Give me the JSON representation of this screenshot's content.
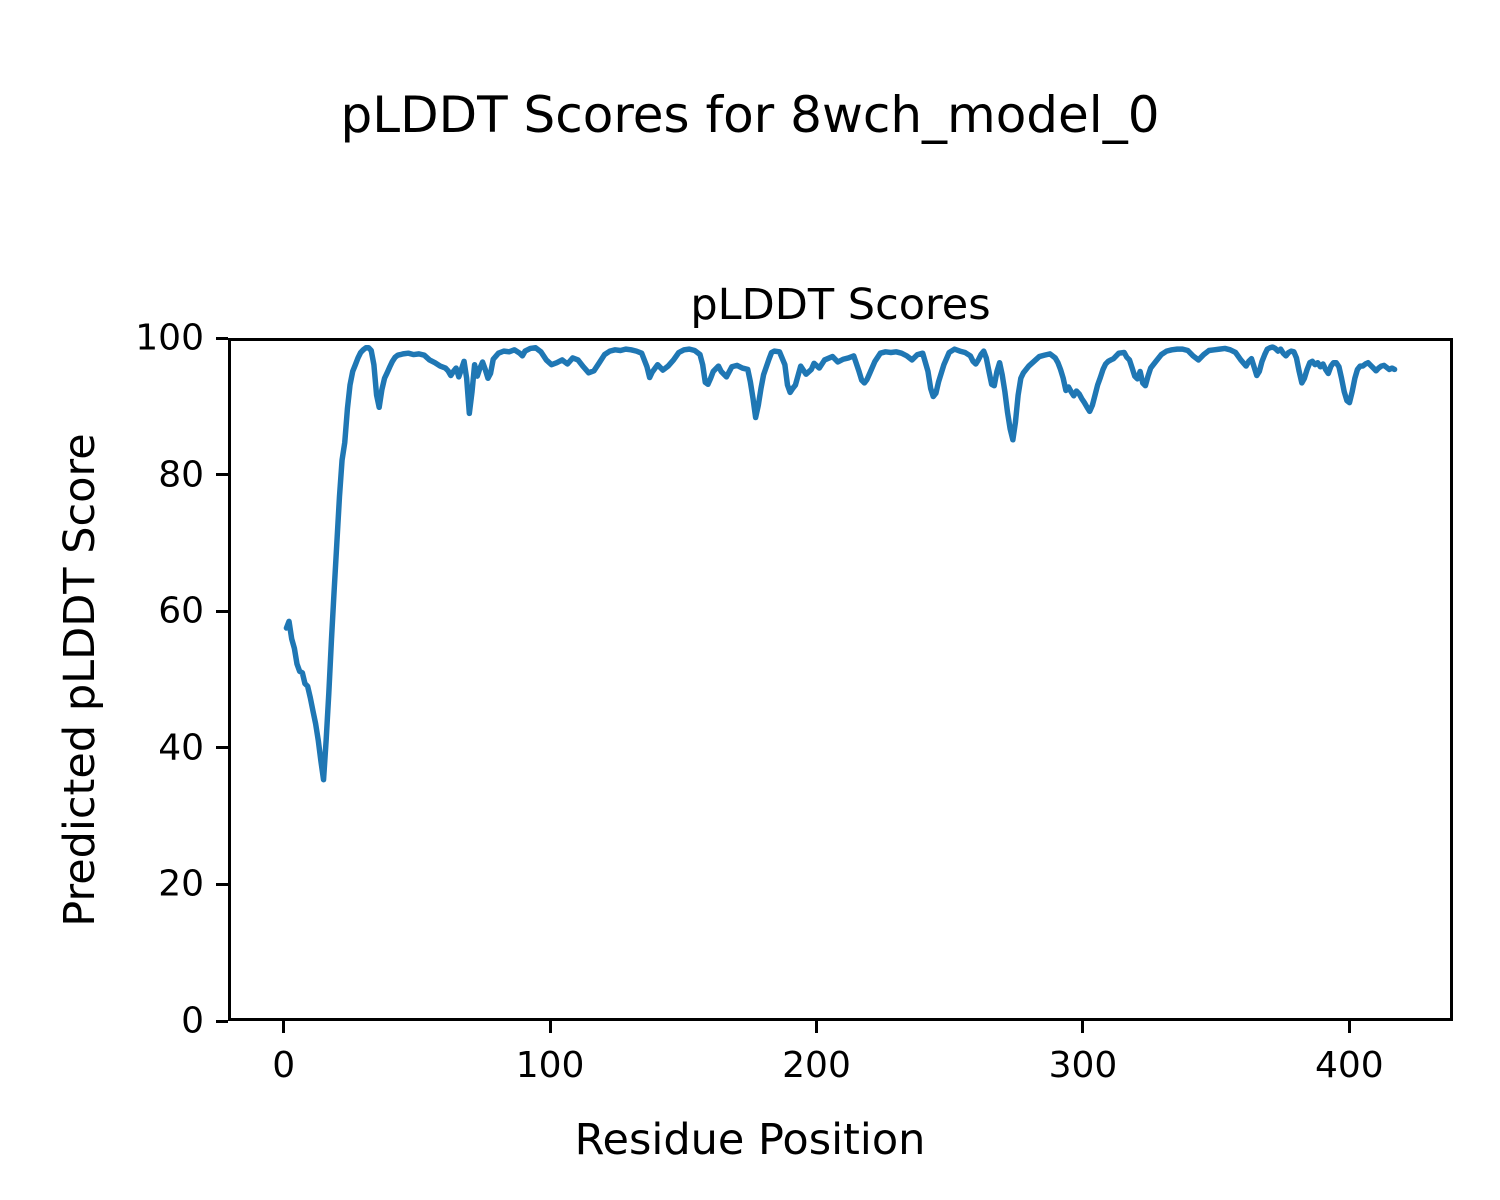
{
  "figure": {
    "suptitle": "pLDDT Scores for 8wch_model_0",
    "background_color": "#ffffff"
  },
  "chart_data": {
    "type": "line",
    "title": "pLDDT Scores",
    "xlabel": "Residue Position",
    "ylabel": "Predicted pLDDT Score",
    "xlim": [
      -20.9,
      438.9
    ],
    "ylim": [
      0,
      100
    ],
    "xticks": [
      0,
      100,
      200,
      300,
      400
    ],
    "yticks": [
      0,
      20,
      40,
      60,
      80,
      100
    ],
    "grid": false,
    "legend": false,
    "line_color": "#1f77b4",
    "line_width": 5.5,
    "series": [
      {
        "name": "pLDDT",
        "points": [
          [
            0,
            57.6
          ],
          [
            1,
            58.6
          ],
          [
            2,
            56.0
          ],
          [
            3,
            54.6
          ],
          [
            4,
            52.3
          ],
          [
            5,
            51.2
          ],
          [
            6,
            51.0
          ],
          [
            7,
            49.4
          ],
          [
            8,
            49.0
          ],
          [
            9,
            47.3
          ],
          [
            10,
            45.4
          ],
          [
            11,
            43.5
          ],
          [
            12,
            41.0
          ],
          [
            13,
            38.0
          ],
          [
            14,
            35.2
          ],
          [
            15,
            41.0
          ],
          [
            16,
            48.0
          ],
          [
            17,
            56.0
          ],
          [
            18,
            63.0
          ],
          [
            19,
            70.0
          ],
          [
            20,
            77.0
          ],
          [
            21,
            82.4
          ],
          [
            22,
            85.0
          ],
          [
            23,
            90.0
          ],
          [
            24,
            93.5
          ],
          [
            25,
            95.5
          ],
          [
            26,
            96.5
          ],
          [
            27,
            97.5
          ],
          [
            28,
            98.3
          ],
          [
            29,
            98.7
          ],
          [
            30,
            99.0
          ],
          [
            31,
            99.0
          ],
          [
            32,
            98.6
          ],
          [
            33,
            96.5
          ],
          [
            34,
            92.0
          ],
          [
            35,
            90.2
          ],
          [
            36,
            92.8
          ],
          [
            37,
            94.5
          ],
          [
            38,
            95.3
          ],
          [
            39,
            96.2
          ],
          [
            40,
            97.0
          ],
          [
            41,
            97.6
          ],
          [
            42,
            97.9
          ],
          [
            43,
            98.0
          ],
          [
            44,
            98.1
          ],
          [
            46,
            98.2
          ],
          [
            48,
            98.0
          ],
          [
            50,
            98.1
          ],
          [
            52,
            97.9
          ],
          [
            54,
            97.2
          ],
          [
            56,
            96.8
          ],
          [
            58,
            96.3
          ],
          [
            60,
            96.0
          ],
          [
            61,
            95.6
          ],
          [
            62,
            94.9
          ],
          [
            63,
            95.5
          ],
          [
            64,
            96.0
          ],
          [
            65,
            94.7
          ],
          [
            66,
            95.8
          ],
          [
            67,
            97.0
          ],
          [
            68,
            94.5
          ],
          [
            69,
            89.3
          ],
          [
            70,
            92.5
          ],
          [
            71,
            96.5
          ],
          [
            72,
            94.8
          ],
          [
            73,
            96.0
          ],
          [
            74,
            96.9
          ],
          [
            75,
            95.8
          ],
          [
            76,
            94.5
          ],
          [
            77,
            95.2
          ],
          [
            78,
            97.3
          ],
          [
            80,
            98.2
          ],
          [
            82,
            98.5
          ],
          [
            84,
            98.4
          ],
          [
            86,
            98.7
          ],
          [
            88,
            98.2
          ],
          [
            89,
            97.8
          ],
          [
            90,
            98.5
          ],
          [
            92,
            98.9
          ],
          [
            94,
            99.0
          ],
          [
            96,
            98.4
          ],
          [
            98,
            97.2
          ],
          [
            100,
            96.5
          ],
          [
            102,
            96.8
          ],
          [
            104,
            97.2
          ],
          [
            106,
            96.6
          ],
          [
            108,
            97.5
          ],
          [
            110,
            97.2
          ],
          [
            112,
            96.2
          ],
          [
            114,
            95.3
          ],
          [
            116,
            95.6
          ],
          [
            118,
            96.8
          ],
          [
            120,
            98.0
          ],
          [
            122,
            98.5
          ],
          [
            124,
            98.7
          ],
          [
            126,
            98.6
          ],
          [
            128,
            98.8
          ],
          [
            130,
            98.7
          ],
          [
            132,
            98.5
          ],
          [
            134,
            98.2
          ],
          [
            136,
            96.2
          ],
          [
            137,
            94.6
          ],
          [
            138,
            95.4
          ],
          [
            140,
            96.5
          ],
          [
            142,
            95.7
          ],
          [
            144,
            96.3
          ],
          [
            146,
            97.2
          ],
          [
            148,
            98.3
          ],
          [
            150,
            98.7
          ],
          [
            152,
            98.8
          ],
          [
            154,
            98.6
          ],
          [
            156,
            98.0
          ],
          [
            157,
            96.5
          ],
          [
            158,
            93.9
          ],
          [
            159,
            93.6
          ],
          [
            160,
            94.5
          ],
          [
            161,
            95.5
          ],
          [
            163,
            96.3
          ],
          [
            164,
            95.5
          ],
          [
            166,
            94.7
          ],
          [
            168,
            96.2
          ],
          [
            170,
            96.4
          ],
          [
            172,
            96.0
          ],
          [
            174,
            95.8
          ],
          [
            175,
            94.0
          ],
          [
            176,
            91.5
          ],
          [
            177,
            88.7
          ],
          [
            178,
            90.5
          ],
          [
            179,
            93.0
          ],
          [
            180,
            95.0
          ],
          [
            182,
            97.3
          ],
          [
            183,
            98.3
          ],
          [
            184,
            98.5
          ],
          [
            186,
            98.4
          ],
          [
            188,
            96.5
          ],
          [
            189,
            93.5
          ],
          [
            190,
            92.4
          ],
          [
            191,
            93.0
          ],
          [
            192,
            93.5
          ],
          [
            194,
            96.3
          ],
          [
            196,
            95.1
          ],
          [
            198,
            95.8
          ],
          [
            199,
            96.7
          ],
          [
            201,
            96.0
          ],
          [
            203,
            97.2
          ],
          [
            206,
            97.7
          ],
          [
            208,
            96.9
          ],
          [
            210,
            97.3
          ],
          [
            212,
            97.5
          ],
          [
            214,
            97.8
          ],
          [
            216,
            95.5
          ],
          [
            217,
            94.2
          ],
          [
            218,
            93.8
          ],
          [
            219,
            94.3
          ],
          [
            220,
            95.2
          ],
          [
            222,
            97.0
          ],
          [
            224,
            98.2
          ],
          [
            226,
            98.4
          ],
          [
            228,
            98.3
          ],
          [
            230,
            98.4
          ],
          [
            232,
            98.2
          ],
          [
            234,
            97.8
          ],
          [
            236,
            97.2
          ],
          [
            238,
            98.0
          ],
          [
            240,
            98.2
          ],
          [
            242,
            95.5
          ],
          [
            243,
            93.0
          ],
          [
            244,
            91.8
          ],
          [
            245,
            92.3
          ],
          [
            246,
            94.0
          ],
          [
            248,
            96.5
          ],
          [
            250,
            98.3
          ],
          [
            252,
            98.8
          ],
          [
            254,
            98.5
          ],
          [
            256,
            98.3
          ],
          [
            258,
            97.8
          ],
          [
            259,
            97.0
          ],
          [
            260,
            96.6
          ],
          [
            261,
            97.2
          ],
          [
            262,
            98.0
          ],
          [
            263,
            98.5
          ],
          [
            264,
            97.5
          ],
          [
            265,
            95.5
          ],
          [
            266,
            93.6
          ],
          [
            267,
            93.4
          ],
          [
            268,
            95.5
          ],
          [
            269,
            96.8
          ],
          [
            270,
            95.0
          ],
          [
            271,
            92.5
          ],
          [
            272,
            89.5
          ],
          [
            273,
            87.0
          ],
          [
            274,
            85.4
          ],
          [
            275,
            88.0
          ],
          [
            276,
            92.0
          ],
          [
            277,
            94.5
          ],
          [
            278,
            95.3
          ],
          [
            279,
            95.8
          ],
          [
            280,
            96.3
          ],
          [
            282,
            97.0
          ],
          [
            284,
            97.7
          ],
          [
            286,
            97.9
          ],
          [
            288,
            98.1
          ],
          [
            290,
            97.5
          ],
          [
            291,
            96.8
          ],
          [
            292,
            95.8
          ],
          [
            293,
            94.5
          ],
          [
            294,
            92.7
          ],
          [
            295,
            93.2
          ],
          [
            296,
            92.5
          ],
          [
            297,
            91.9
          ],
          [
            298,
            92.6
          ],
          [
            299,
            92.2
          ],
          [
            300,
            91.5
          ],
          [
            301,
            90.9
          ],
          [
            302,
            90.2
          ],
          [
            303,
            89.6
          ],
          [
            304,
            90.5
          ],
          [
            305,
            92.0
          ],
          [
            306,
            93.5
          ],
          [
            307,
            94.6
          ],
          [
            308,
            95.8
          ],
          [
            309,
            96.6
          ],
          [
            310,
            97.0
          ],
          [
            311,
            97.2
          ],
          [
            312,
            97.4
          ],
          [
            314,
            98.2
          ],
          [
            316,
            98.3
          ],
          [
            317,
            97.6
          ],
          [
            318,
            97.2
          ],
          [
            319,
            96.0
          ],
          [
            320,
            94.8
          ],
          [
            321,
            94.4
          ],
          [
            322,
            95.5
          ],
          [
            323,
            93.8
          ],
          [
            324,
            93.4
          ],
          [
            325,
            94.8
          ],
          [
            326,
            96.0
          ],
          [
            328,
            97.0
          ],
          [
            330,
            98.0
          ],
          [
            332,
            98.5
          ],
          [
            334,
            98.7
          ],
          [
            336,
            98.8
          ],
          [
            338,
            98.8
          ],
          [
            340,
            98.6
          ],
          [
            342,
            97.8
          ],
          [
            344,
            97.2
          ],
          [
            346,
            98.0
          ],
          [
            348,
            98.6
          ],
          [
            350,
            98.7
          ],
          [
            352,
            98.8
          ],
          [
            354,
            98.9
          ],
          [
            356,
            98.7
          ],
          [
            358,
            98.3
          ],
          [
            360,
            97.2
          ],
          [
            362,
            96.3
          ],
          [
            363,
            97.0
          ],
          [
            364,
            97.4
          ],
          [
            365,
            96.2
          ],
          [
            366,
            94.9
          ],
          [
            367,
            95.5
          ],
          [
            368,
            97.0
          ],
          [
            369,
            98.0
          ],
          [
            370,
            98.8
          ],
          [
            371,
            99.0
          ],
          [
            372,
            99.1
          ],
          [
            373,
            98.9
          ],
          [
            374,
            98.5
          ],
          [
            375,
            98.8
          ],
          [
            376,
            98.2
          ],
          [
            377,
            97.8
          ],
          [
            378,
            98.3
          ],
          [
            379,
            98.5
          ],
          [
            380,
            98.4
          ],
          [
            381,
            97.5
          ],
          [
            382,
            95.5
          ],
          [
            383,
            93.8
          ],
          [
            384,
            94.5
          ],
          [
            385,
            95.8
          ],
          [
            386,
            96.8
          ],
          [
            387,
            97.0
          ],
          [
            388,
            96.5
          ],
          [
            389,
            96.8
          ],
          [
            390,
            96.2
          ],
          [
            391,
            96.6
          ],
          [
            392,
            95.8
          ],
          [
            393,
            95.2
          ],
          [
            394,
            96.3
          ],
          [
            395,
            96.8
          ],
          [
            396,
            96.8
          ],
          [
            397,
            96.2
          ],
          [
            398,
            94.5
          ],
          [
            399,
            92.5
          ],
          [
            400,
            91.2
          ],
          [
            401,
            90.9
          ],
          [
            402,
            92.5
          ],
          [
            403,
            94.5
          ],
          [
            404,
            95.8
          ],
          [
            405,
            96.3
          ],
          [
            406,
            96.3
          ],
          [
            407,
            96.6
          ],
          [
            408,
            96.8
          ],
          [
            409,
            96.4
          ],
          [
            410,
            96.0
          ],
          [
            411,
            95.6
          ],
          [
            412,
            96.0
          ],
          [
            413,
            96.3
          ],
          [
            414,
            96.4
          ],
          [
            415,
            96.1
          ],
          [
            416,
            95.8
          ],
          [
            417,
            96.0
          ],
          [
            418,
            95.8
          ]
        ]
      }
    ]
  }
}
